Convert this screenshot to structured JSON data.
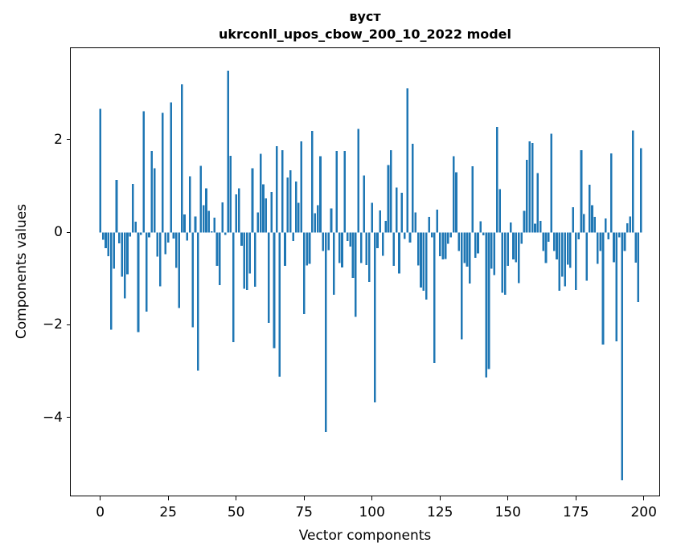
{
  "figure": {
    "title_line1": "вуст",
    "title_line2": "ukrconll_upos_cbow_200_10_2022 model",
    "xlabel": "Vector components",
    "ylabel": "Components values"
  },
  "chart_data": {
    "type": "bar",
    "title": "вуст",
    "subtitle": "ukrconll_upos_cbow_200_10_2022 model",
    "xlabel": "Vector components",
    "ylabel": "Components values",
    "bar_color": "#1f77b4",
    "axis_color": "#000000",
    "background": "#ffffff",
    "grid": false,
    "legend": false,
    "x_ticks": [
      0,
      25,
      50,
      75,
      100,
      125,
      150,
      175,
      200
    ],
    "y_ticks": [
      2,
      0,
      -2,
      -4
    ],
    "xlim": [
      -10.9,
      205.7
    ],
    "ylim": [
      -5.67,
      3.99
    ],
    "n_bars": 200,
    "x_start": 0,
    "values": [
      2.67,
      -0.16,
      -0.34,
      -0.51,
      -2.1,
      -0.78,
      1.14,
      -0.23,
      -0.95,
      -1.42,
      -0.9,
      -0.09,
      1.05,
      0.23,
      -2.15,
      -0.05,
      2.62,
      -1.71,
      -0.1,
      1.76,
      1.39,
      -0.52,
      -1.16,
      2.58,
      -0.47,
      -0.22,
      2.81,
      -0.13,
      -0.76,
      -1.63,
      3.2,
      0.39,
      -0.17,
      1.21,
      -2.05,
      0.35,
      -2.98,
      1.44,
      0.59,
      0.95,
      0.47,
      0.03,
      0.32,
      -0.72,
      -1.14,
      0.65,
      -0.05,
      3.49,
      1.66,
      -2.37,
      0.82,
      0.95,
      -0.29,
      -1.21,
      -1.24,
      -0.88,
      1.39,
      -1.17,
      0.43,
      1.7,
      1.04,
      0.74,
      -1.95,
      0.88,
      -2.5,
      1.86,
      -3.11,
      1.78,
      -0.72,
      1.19,
      1.34,
      -0.18,
      1.1,
      0.64,
      1.97,
      -1.76,
      -0.71,
      -0.68,
      2.19,
      0.42,
      0.59,
      1.65,
      -0.4,
      -4.31,
      -0.38,
      0.52,
      -1.34,
      1.76,
      -0.66,
      -0.75,
      1.76,
      -0.18,
      -0.3,
      -0.98,
      -1.82,
      2.24,
      -0.66,
      1.23,
      -0.7,
      -1.07,
      0.64,
      -3.67,
      -0.34,
      0.48,
      -0.5,
      0.25,
      1.46,
      1.78,
      -0.72,
      0.97,
      -0.88,
      0.86,
      -0.14,
      3.11,
      -0.22,
      1.92,
      0.43,
      -0.71,
      -1.19,
      -1.26,
      -1.45,
      0.34,
      -0.1,
      -2.82,
      0.49,
      -0.51,
      -0.58,
      -0.57,
      -0.24,
      -0.1,
      1.65,
      1.3,
      -0.4,
      -2.31,
      -0.66,
      -0.74,
      -1.1,
      1.43,
      -0.55,
      -0.45,
      0.24,
      -0.06,
      -3.13,
      -2.95,
      -0.78,
      -0.92,
      2.28,
      0.94,
      -1.3,
      -1.34,
      -0.72,
      0.22,
      -0.58,
      -0.64,
      -1.09,
      -0.24,
      0.47,
      1.57,
      1.97,
      1.93,
      0.19,
      1.28,
      0.25,
      -0.4,
      -0.66,
      -0.2,
      2.13,
      -0.4,
      -0.58,
      -1.26,
      -0.95,
      -1.16,
      -0.69,
      -0.76,
      0.55,
      -1.24,
      -0.15,
      1.78,
      0.4,
      -1.04,
      1.03,
      0.59,
      0.34,
      -0.68,
      -0.4,
      -2.42,
      0.3,
      -0.15,
      1.71,
      -0.64,
      -2.35,
      -0.1,
      -5.35,
      -0.4,
      0.2,
      0.35,
      2.2,
      -0.65,
      -1.5,
      1.82
    ]
  }
}
